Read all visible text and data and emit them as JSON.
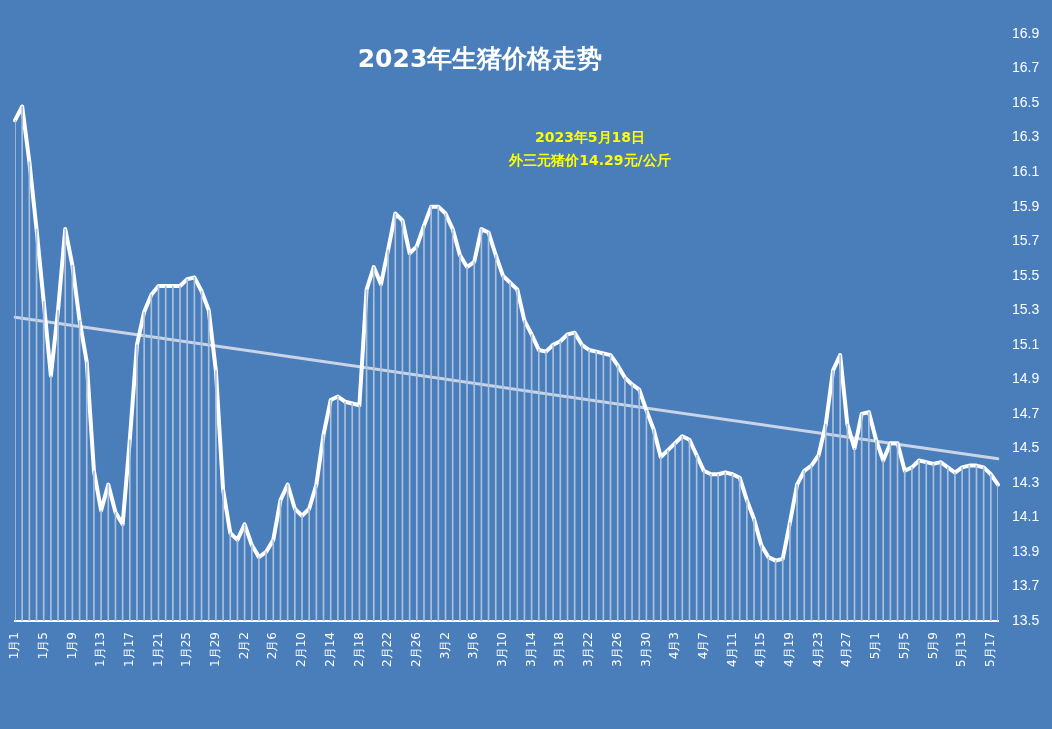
{
  "chart_data": {
    "type": "line",
    "title": "2023年生猪价格走势",
    "annotations": [
      "2023年5月18日",
      "外三元猪价14.29元/公斤"
    ],
    "categories": [
      "1月1",
      null,
      null,
      null,
      "1月5",
      null,
      null,
      null,
      "1月9",
      null,
      null,
      null,
      "1月13",
      null,
      null,
      null,
      "1月17",
      null,
      null,
      null,
      "1月21",
      null,
      null,
      null,
      "1月25",
      null,
      null,
      null,
      "1月29",
      null,
      null,
      null,
      "2月2",
      null,
      null,
      null,
      "2月6",
      null,
      null,
      null,
      "2月10",
      null,
      null,
      null,
      "2月14",
      null,
      null,
      null,
      "2月18",
      null,
      null,
      null,
      "2月22",
      null,
      null,
      null,
      "2月26",
      null,
      null,
      null,
      "3月2",
      null,
      null,
      null,
      "3月6",
      null,
      null,
      null,
      "3月10",
      null,
      null,
      null,
      "3月14",
      null,
      null,
      null,
      "3月18",
      null,
      null,
      null,
      "3月22",
      null,
      null,
      null,
      "3月26",
      null,
      null,
      null,
      "3月30",
      null,
      null,
      null,
      "4月3",
      null,
      null,
      null,
      "4月7",
      null,
      null,
      null,
      "4月11",
      null,
      null,
      null,
      "4月15",
      null,
      null,
      null,
      "4月19",
      null,
      null,
      null,
      "4月23",
      null,
      null,
      null,
      "4月27",
      null,
      null,
      null,
      "5月1",
      null,
      null,
      null,
      "5月5",
      null,
      null,
      null,
      "5月9",
      null,
      null,
      null,
      "5月13",
      null,
      null,
      null,
      "5月17",
      null
    ],
    "series": [
      {
        "type": "bar",
        "color": "#a9c0df",
        "values": [
          16.4,
          16.48,
          16.16,
          15.77,
          15.35,
          14.92,
          15.3,
          15.77,
          15.56,
          15.24,
          15.0,
          14.37,
          14.14,
          14.29,
          14.13,
          14.06,
          14.55,
          15.1,
          15.29,
          15.39,
          15.44,
          15.44,
          15.44,
          15.44,
          15.48,
          15.49,
          15.41,
          15.3,
          14.95,
          14.26,
          14.01,
          13.97,
          14.06,
          13.94,
          13.87,
          13.9,
          13.97,
          14.2,
          14.29,
          14.15,
          14.11,
          14.15,
          14.29,
          14.58,
          14.78,
          14.8,
          14.77,
          14.76,
          14.75,
          15.42,
          15.55,
          15.45,
          15.65,
          15.86,
          15.82,
          15.63,
          15.67,
          15.79,
          15.9,
          15.9,
          15.86,
          15.77,
          15.62,
          15.55,
          15.58,
          15.77,
          15.75,
          15.62,
          15.5,
          15.46,
          15.42,
          15.24,
          15.16,
          15.07,
          15.06,
          15.1,
          15.12,
          15.16,
          15.17,
          15.1,
          15.07,
          15.06,
          15.05,
          15.04,
          14.98,
          14.91,
          14.87,
          14.84,
          14.72,
          14.61,
          14.45,
          14.49,
          14.53,
          14.57,
          14.55,
          14.46,
          14.37,
          14.35,
          14.35,
          14.36,
          14.35,
          14.33,
          14.2,
          14.09,
          13.94,
          13.87,
          13.85,
          13.86,
          14.07,
          14.29,
          14.37,
          14.4,
          14.46,
          14.64,
          14.95,
          15.04,
          14.64,
          14.5,
          14.7,
          14.71,
          14.55,
          14.43,
          14.53,
          14.53,
          14.37,
          14.39,
          14.43,
          14.42,
          14.41,
          14.42,
          14.39,
          14.36,
          14.39,
          14.4,
          14.4,
          14.39,
          14.35,
          14.29
        ]
      },
      {
        "color": "#ffffff",
        "values": [
          16.4,
          16.48,
          16.16,
          15.77,
          15.35,
          14.92,
          15.3,
          15.77,
          15.56,
          15.24,
          15.0,
          14.37,
          14.14,
          14.29,
          14.13,
          14.06,
          14.55,
          15.1,
          15.29,
          15.39,
          15.44,
          15.44,
          15.44,
          15.44,
          15.48,
          15.49,
          15.41,
          15.3,
          14.95,
          14.26,
          14.01,
          13.97,
          14.06,
          13.94,
          13.87,
          13.9,
          13.97,
          14.2,
          14.29,
          14.15,
          14.11,
          14.15,
          14.29,
          14.58,
          14.78,
          14.8,
          14.77,
          14.76,
          14.75,
          15.42,
          15.55,
          15.45,
          15.65,
          15.86,
          15.82,
          15.63,
          15.67,
          15.79,
          15.9,
          15.9,
          15.86,
          15.77,
          15.62,
          15.55,
          15.58,
          15.77,
          15.75,
          15.62,
          15.5,
          15.46,
          15.42,
          15.24,
          15.16,
          15.07,
          15.06,
          15.1,
          15.12,
          15.16,
          15.17,
          15.1,
          15.07,
          15.06,
          15.05,
          15.04,
          14.98,
          14.91,
          14.87,
          14.84,
          14.72,
          14.61,
          14.45,
          14.49,
          14.53,
          14.57,
          14.55,
          14.46,
          14.37,
          14.35,
          14.35,
          14.36,
          14.35,
          14.33,
          14.2,
          14.09,
          13.94,
          13.87,
          13.85,
          13.86,
          14.07,
          14.29,
          14.37,
          14.4,
          14.46,
          14.64,
          14.95,
          15.04,
          14.64,
          14.5,
          14.7,
          14.71,
          14.55,
          14.43,
          14.53,
          14.53,
          14.37,
          14.39,
          14.43,
          14.42,
          14.41,
          14.42,
          14.39,
          14.36,
          14.39,
          14.4,
          14.4,
          14.39,
          14.35,
          14.29
        ]
      },
      {
        "type": "line",
        "color": "#c9d5e6",
        "values": [
          15.26,
          null,
          null,
          null,
          null,
          null,
          null,
          null,
          null,
          null,
          null,
          null,
          null,
          null,
          null,
          null,
          null,
          null,
          null,
          null,
          null,
          null,
          null,
          null,
          null,
          null,
          null,
          null,
          null,
          null,
          null,
          null,
          null,
          null,
          null,
          null,
          null,
          null,
          null,
          null,
          null,
          null,
          null,
          null,
          null,
          null,
          null,
          null,
          null,
          null,
          null,
          null,
          null,
          null,
          null,
          null,
          null,
          null,
          null,
          null,
          null,
          null,
          null,
          null,
          null,
          null,
          null,
          null,
          null,
          null,
          null,
          null,
          null,
          null,
          null,
          null,
          null,
          null,
          null,
          null,
          null,
          null,
          null,
          null,
          null,
          null,
          null,
          null,
          null,
          null,
          null,
          null,
          null,
          null,
          null,
          null,
          null,
          null,
          null,
          null,
          null,
          null,
          null,
          null,
          null,
          null,
          null,
          null,
          null,
          null,
          null,
          null,
          null,
          null,
          null,
          null,
          null,
          null,
          null,
          null,
          null,
          null,
          null,
          null,
          null,
          null,
          null,
          null,
          null,
          null,
          null,
          null,
          null,
          null,
          null,
          null,
          null,
          14.44
        ]
      }
    ],
    "ylim": [
      13.5,
      16.9
    ],
    "yticks": [
      13.5,
      13.7,
      13.9,
      14.1,
      14.3,
      14.5,
      14.7,
      14.9,
      15.1,
      15.3,
      15.5,
      15.7,
      15.9,
      16.1,
      16.3,
      16.5,
      16.7,
      16.9
    ],
    "grid": false,
    "legend": false,
    "marker": "none",
    "line_style": "solid"
  }
}
